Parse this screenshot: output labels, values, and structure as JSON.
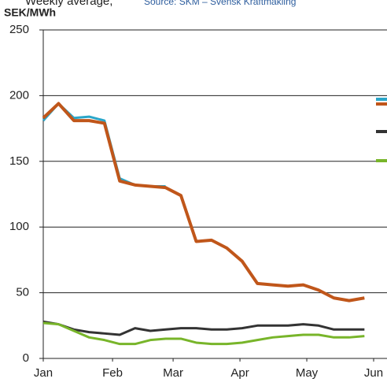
{
  "chart_data": {
    "type": "line",
    "title": "Weekly average,",
    "source": "Source: SKM – Svensk Kraftmäkling",
    "y_label": "SEK/MWh",
    "x": [
      0,
      1,
      2,
      3,
      4,
      5,
      6,
      7,
      8,
      9,
      10,
      11,
      12,
      13,
      14,
      15,
      16,
      17,
      18,
      19,
      20,
      21
    ],
    "xlim": [
      0,
      21.6
    ],
    "xticks": [
      {
        "value": 0,
        "label": "Jan"
      },
      {
        "value": 4.53,
        "label": "Feb"
      },
      {
        "value": 8.49,
        "label": "Mar"
      },
      {
        "value": 12.86,
        "label": "Apr"
      },
      {
        "value": 17.23,
        "label": "May"
      },
      {
        "value": 21.6,
        "label": "Jun"
      }
    ],
    "ylim": [
      0,
      250
    ],
    "yticks": [
      0,
      50,
      100,
      150,
      200,
      250
    ],
    "grid": true,
    "series": [
      {
        "color": "#2aa6c9",
        "width": 3,
        "values": [
          181,
          194,
          183,
          184,
          181,
          137,
          132,
          131,
          131,
          null,
          null,
          null,
          null,
          null,
          null,
          null,
          null,
          null,
          null,
          null,
          null,
          null
        ]
      },
      {
        "color": "#c0561a",
        "width": 4,
        "values": [
          183,
          194,
          181,
          181,
          179,
          135,
          132,
          131,
          130,
          124,
          89,
          90,
          84,
          74,
          57,
          56,
          55,
          56,
          52,
          46,
          44,
          46
        ]
      },
      {
        "color": "#333333",
        "width": 3,
        "values": [
          28,
          26,
          22,
          20,
          19,
          18,
          23,
          21,
          22,
          23,
          23,
          22,
          22,
          23,
          25,
          25,
          25,
          26,
          25,
          22,
          22,
          22
        ]
      },
      {
        "color": "#78b52a",
        "width": 3,
        "values": [
          27,
          26,
          21,
          16,
          14,
          11,
          11,
          14,
          15,
          15,
          12,
          11,
          11,
          12,
          14,
          16,
          17,
          18,
          18,
          16,
          16,
          17
        ]
      }
    ]
  }
}
